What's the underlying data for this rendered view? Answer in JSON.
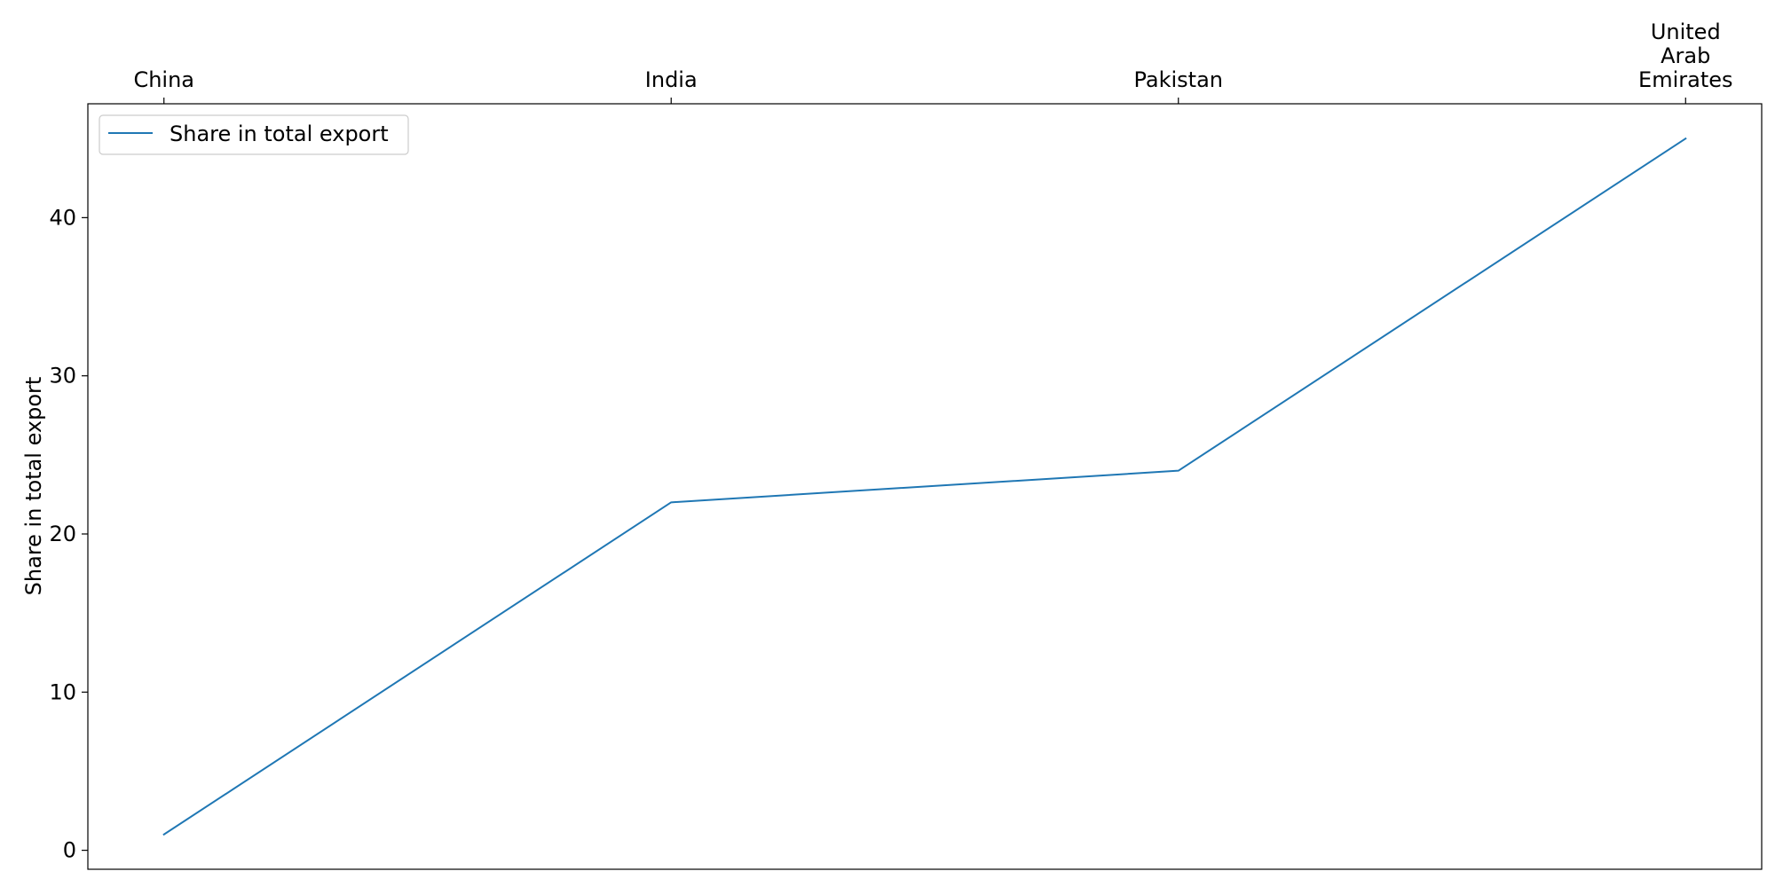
{
  "chart_data": {
    "type": "line",
    "categories": [
      "China",
      "India",
      "Pakistan",
      "United Arab Emirates"
    ],
    "category_label_lines": [
      [
        "China"
      ],
      [
        "India"
      ],
      [
        "Pakistan"
      ],
      [
        "United",
        "Arab",
        "Emirates"
      ]
    ],
    "series": [
      {
        "name": "Share in total export",
        "values": [
          1,
          22,
          24,
          45
        ],
        "color": "#1f77b4"
      }
    ],
    "xlabel": "",
    "ylabel": "Share in total export",
    "ylim": [
      -1.2,
      47.2
    ],
    "yticks": [
      0,
      10,
      20,
      30,
      40
    ],
    "x_axis_position": "top",
    "grid": false,
    "legend": "top-left"
  }
}
